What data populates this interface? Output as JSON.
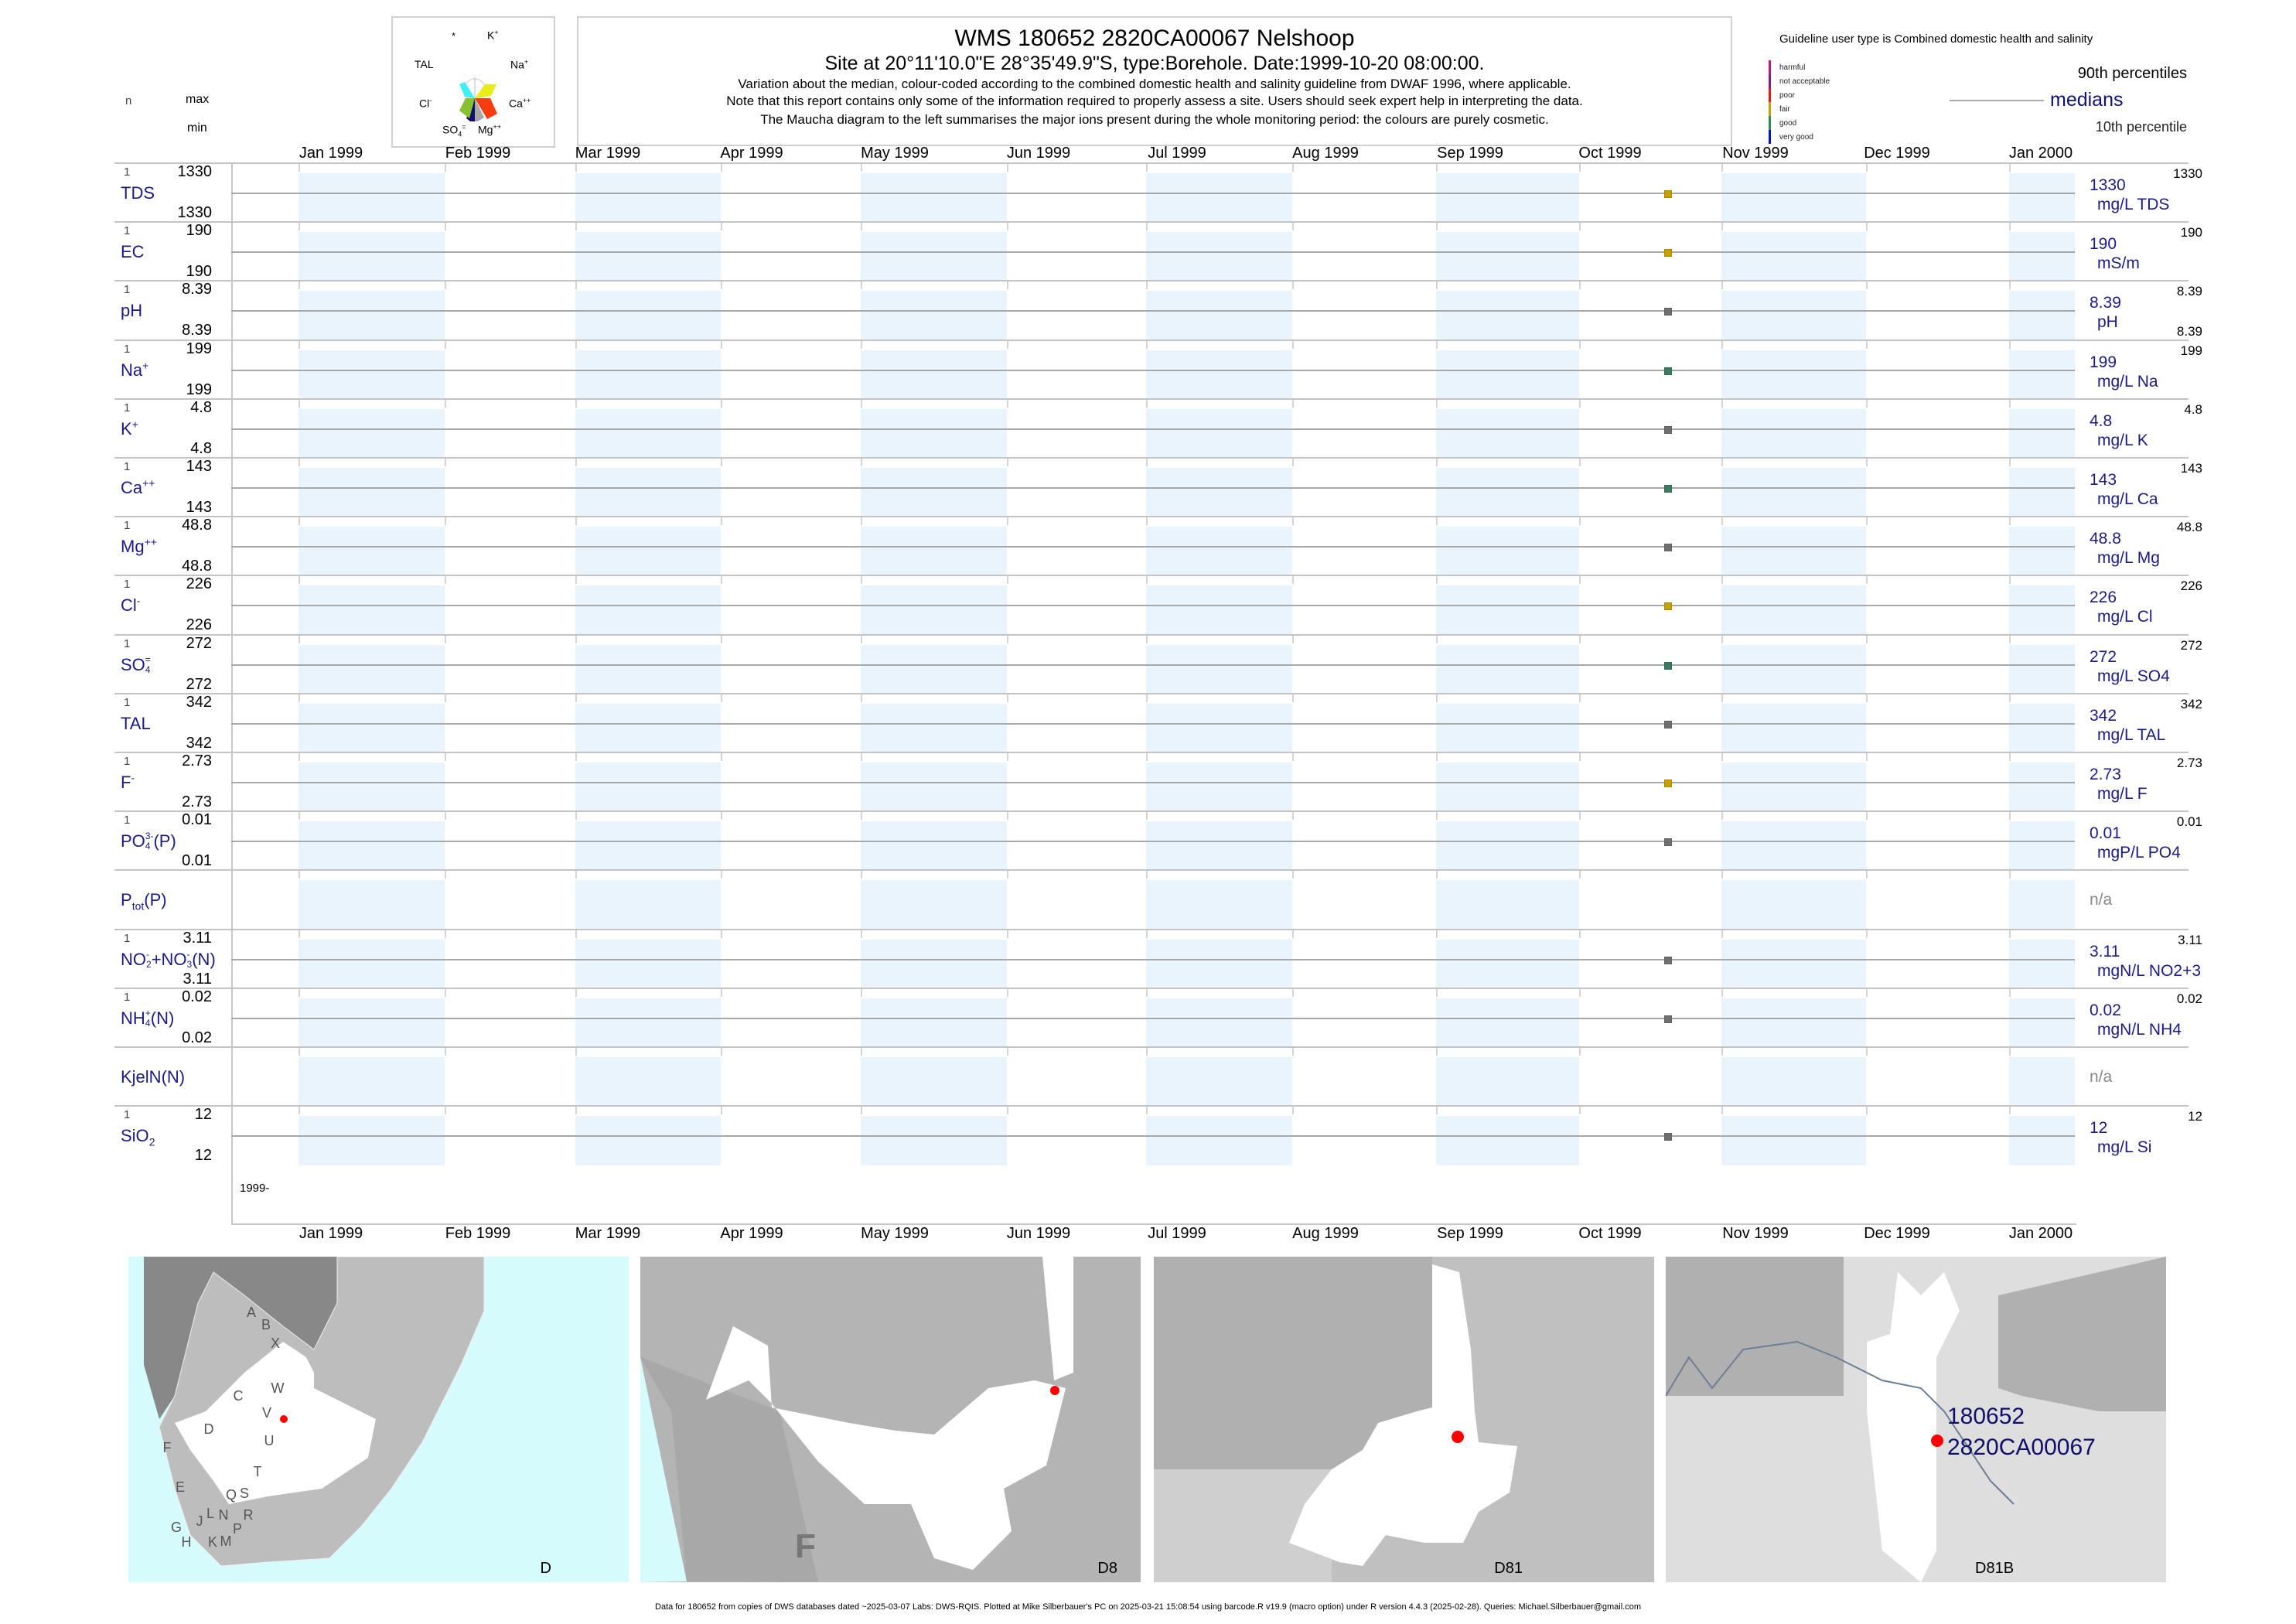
{
  "header": {
    "title": "WMS 180652 2820CA00067 Nelshoop",
    "subtitle": "Site at 20°11'10.0\"E 28°35'49.9\"S, type:Borehole. Date:1999-10-20 08:00:00.",
    "note1": "Variation about the median,  colour-coded according to the combined domestic health and salinity guideline from DWAF 1996, where applicable.",
    "note2": "Note that this report contains only some of the information required to properly assess a site. Users should seek expert help in interpreting the data.",
    "note3": "The Maucha diagram to the left summarises the major ions present during the whole monitoring period: the colours are purely cosmetic."
  },
  "left_headers": {
    "n": "n",
    "max": "max",
    "min": "min"
  },
  "maucha": {
    "labels": {
      "star": "*",
      "k": "K",
      "k_sup": "+",
      "na": "Na",
      "na_sup": "+",
      "ca": "Ca",
      "ca_sup": "++",
      "mg": "Mg",
      "mg_sup": "++",
      "so4": "SO",
      "so4_sub": "4",
      "so4_sup": "=",
      "cl": "Cl",
      "cl_sup": "-",
      "tal": "TAL"
    },
    "colors": {
      "tal": "#40f0f8",
      "na": "#e8ec18",
      "ca": "#f83c10",
      "mg": "#a8a8a8",
      "so4": "#101070",
      "cl": "#88c030"
    }
  },
  "legend": {
    "guideline": "Guideline user type is Combined domestic health and salinity",
    "classes": [
      {
        "label": "harmful",
        "color": "#d0107a"
      },
      {
        "label": "not acceptable",
        "color": "#8a1890"
      },
      {
        "label": "poor",
        "color": "#ff1010"
      },
      {
        "label": "fair",
        "color": "#c8a000"
      },
      {
        "label": "good",
        "color": "#2e8b57"
      },
      {
        "label": "very good",
        "color": "#0010e0"
      }
    ],
    "p90": "90th percentiles",
    "medians": "medians",
    "p10": "10th percentile"
  },
  "chart_data": {
    "type": "scatter",
    "title": "WMS 180652 2820CA00067 Nelshoop",
    "x_axis": {
      "ticks": [
        "Jan 1999",
        "Feb 1999",
        "Mar 1999",
        "Apr 1999",
        "May 1999",
        "Jun 1999",
        "Jul 1999",
        "Aug 1999",
        "Sep 1999",
        "Oct 1999",
        "Nov 1999",
        "Dec 1999",
        "Jan 2000"
      ],
      "range": [
        "1999-01-01",
        "2000-01-15"
      ],
      "year_label": "1999-"
    },
    "sample_date": "1999-10-20",
    "series": [
      {
        "name": [
          {
            "t": "TDS"
          }
        ],
        "n": "1",
        "max": "1330",
        "min": "1330",
        "median": "1330",
        "unit": "mg/L TDS",
        "p90": "1330",
        "value": 1330,
        "class": "fair"
      },
      {
        "name": [
          {
            "t": "EC"
          }
        ],
        "n": "1",
        "max": "190",
        "min": "190",
        "median": "190",
        "unit": "mS/m",
        "p90": "190",
        "value": 190,
        "class": "fair"
      },
      {
        "name": [
          {
            "t": "pH"
          }
        ],
        "n": "1",
        "max": "8.39",
        "min": "8.39",
        "median": "8.39",
        "unit": "pH",
        "p90": "8.39",
        "p10": "8.39",
        "value": 8.39,
        "class": "none"
      },
      {
        "name": [
          {
            "t": "Na",
            "sup": "+"
          }
        ],
        "n": "1",
        "max": "199",
        "min": "199",
        "median": "199",
        "unit": "mg/L Na",
        "p90": "199",
        "value": 199,
        "class": "good"
      },
      {
        "name": [
          {
            "t": "K",
            "sup": "+"
          }
        ],
        "n": "1",
        "max": "4.8",
        "min": "4.8",
        "median": "4.8",
        "unit": "mg/L K",
        "p90": "4.8",
        "value": 4.8,
        "class": "none"
      },
      {
        "name": [
          {
            "t": "Ca",
            "sup": "++"
          }
        ],
        "n": "1",
        "max": "143",
        "min": "143",
        "median": "143",
        "unit": "mg/L Ca",
        "p90": "143",
        "value": 143,
        "class": "good"
      },
      {
        "name": [
          {
            "t": "Mg",
            "sup": "++"
          }
        ],
        "n": "1",
        "max": "48.8",
        "min": "48.8",
        "median": "48.8",
        "unit": "mg/L Mg",
        "p90": "48.8",
        "value": 48.8,
        "class": "none"
      },
      {
        "name": [
          {
            "t": "Cl",
            "sup": "-"
          }
        ],
        "n": "1",
        "max": "226",
        "min": "226",
        "median": "226",
        "unit": "mg/L Cl",
        "p90": "226",
        "value": 226,
        "class": "fair"
      },
      {
        "name": [
          {
            "t": "SO",
            "sub": "4",
            "sup": "="
          }
        ],
        "n": "1",
        "max": "272",
        "min": "272",
        "median": "272",
        "unit": "mg/L SO4",
        "p90": "272",
        "value": 272,
        "class": "good"
      },
      {
        "name": [
          {
            "t": "TAL"
          }
        ],
        "n": "1",
        "max": "342",
        "min": "342",
        "median": "342",
        "unit": "mg/L TAL",
        "p90": "342",
        "value": 342,
        "class": "none"
      },
      {
        "name": [
          {
            "t": "F",
            "sup": "-"
          }
        ],
        "n": "1",
        "max": "2.73",
        "min": "2.73",
        "median": "2.73",
        "unit": "mg/L F",
        "p90": "2.73",
        "value": 2.73,
        "class": "fair"
      },
      {
        "name": [
          {
            "t": "PO",
            "sub": "4",
            "sup": "3-"
          },
          {
            "t": "(P)"
          }
        ],
        "n": "1",
        "max": "0.01",
        "min": "0.01",
        "median": "0.01",
        "unit": "mgP/L PO4",
        "p90": "0.01",
        "value": 0.01,
        "class": "none"
      },
      {
        "name": [
          {
            "t": "P",
            "sub": "tot"
          },
          {
            "t": "(P)"
          }
        ],
        "na": "n/a"
      },
      {
        "name": [
          {
            "t": "NO",
            "sub": "2",
            "sup": "-"
          },
          {
            "t": "+NO",
            "sub": "3",
            "sup": "-"
          },
          {
            "t": "(N)"
          }
        ],
        "n": "1",
        "max": "3.11",
        "min": "3.11",
        "median": "3.11",
        "unit": "mgN/L NO2+3",
        "p90": "3.11",
        "value": 3.11,
        "class": "none"
      },
      {
        "name": [
          {
            "t": "NH",
            "sub": "4",
            "sup": "+"
          },
          {
            "t": "(N)"
          }
        ],
        "n": "1",
        "max": "0.02",
        "min": "0.02",
        "median": "0.02",
        "unit": "mgN/L NH4",
        "p90": "0.02",
        "value": 0.02,
        "class": "none"
      },
      {
        "name": [
          {
            "t": "KjelN(N)"
          }
        ],
        "na": "n/a"
      },
      {
        "name": [
          {
            "t": "SiO",
            "sub": "2"
          }
        ],
        "n": "1",
        "max": "12",
        "min": "12",
        "median": "12",
        "unit": "mg/L Si",
        "p90": "12",
        "value": 12,
        "class": "none"
      }
    ],
    "class_colors": {
      "fair": "#c8a000",
      "good": "#3a7d5e",
      "none": "#707070"
    }
  },
  "maps": {
    "letters": [
      "A",
      "B",
      "X",
      "W",
      "C",
      "D",
      "V",
      "U",
      "F",
      "T",
      "E",
      "S",
      "Q",
      "R",
      "L",
      "N",
      "P",
      "J",
      "G",
      "H",
      "K",
      "M"
    ],
    "map1_label": "D",
    "map2_label": "D8",
    "map2_region": "F",
    "map3_label": "D81",
    "map4_label": "D81B",
    "site_id": "180652",
    "site_code": "2820CA00067"
  },
  "footer": "Data for 180652 from copies of DWS databases dated ~2025-03-07 Labs: DWS-RQIS. Plotted at Mike Silberbauer's PC on 2025-03-21 15:08:54 using barcode.R v19.9 (macro option) under R version 4.4.3 (2025-02-28). Queries: Michael.Silberbauer@gmail.com"
}
